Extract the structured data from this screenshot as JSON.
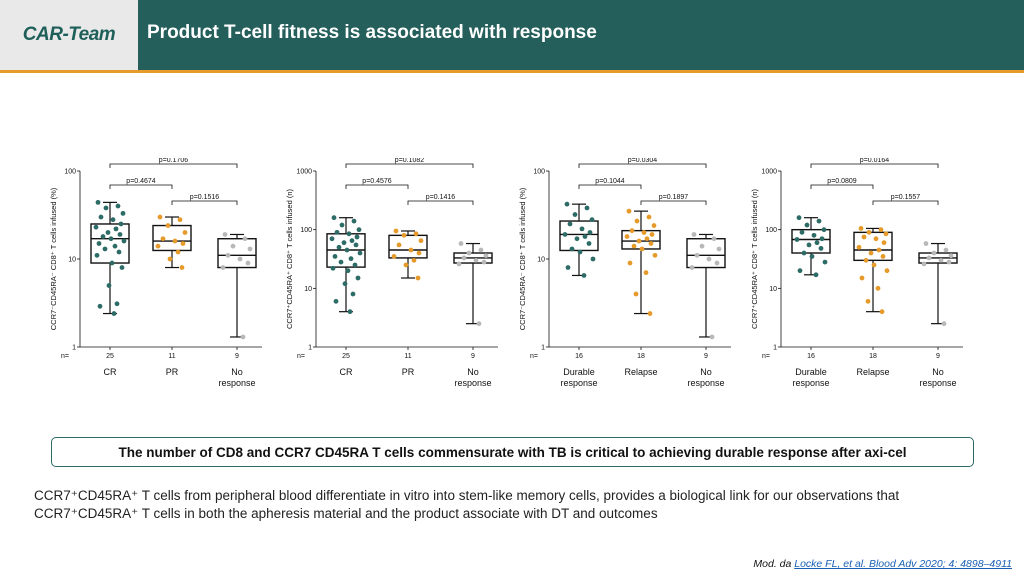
{
  "header": {
    "logo": "CAR-Team",
    "title": "Product T-cell fitness is associated with response"
  },
  "colors": {
    "teal": "#255f5c",
    "orange": "#e59a2a",
    "dot_grey": "#b8b8b8"
  },
  "chart_data": [
    {
      "type": "box",
      "ylabel": "CCR7⁻CD45RA⁻ CD8⁺ T cells infused (%)",
      "yscale": "log",
      "ylim": [
        1,
        100
      ],
      "yticks": [
        "1",
        "10",
        "100"
      ],
      "n_label": "n=",
      "groups": [
        {
          "label": [
            "CR"
          ],
          "n": "25",
          "color": "#2d6b66",
          "box": {
            "min": 2.4,
            "q1": 9,
            "median": 17,
            "q3": 25,
            "max": 44
          },
          "points": [
            44,
            40,
            38,
            33,
            30,
            28,
            25,
            23,
            22,
            20,
            19,
            18,
            17,
            16,
            15,
            14,
            13,
            12,
            11,
            9,
            8,
            5,
            3.1,
            2.9,
            2.4
          ]
        },
        {
          "label": [
            "PR"
          ],
          "n": "11",
          "color": "#e59a2a",
          "box": {
            "min": 8,
            "q1": 12.5,
            "median": 16,
            "q3": 24,
            "max": 30
          },
          "points": [
            30,
            28,
            24,
            20,
            17,
            16,
            15,
            14,
            12,
            10,
            8
          ]
        },
        {
          "label": [
            "No",
            "response"
          ],
          "n": "9",
          "color": "#b8b8b8",
          "box": {
            "min": 1.3,
            "q1": 8,
            "median": 11,
            "q3": 17,
            "max": 19
          },
          "points": [
            19,
            17,
            14,
            13,
            11,
            10,
            9,
            8,
            1.3
          ]
        }
      ],
      "pvalues": [
        {
          "from": 0,
          "to": 2,
          "text": "p=0.1706"
        },
        {
          "from": 0,
          "to": 1,
          "text": "p=0.4674"
        },
        {
          "from": 1,
          "to": 2,
          "text": "p=0.1516"
        }
      ]
    },
    {
      "type": "box",
      "ylabel": "CCR7⁺CD45RA⁺ CD8⁺ T cells infused (n)",
      "yscale": "log",
      "ylim": [
        1,
        1000
      ],
      "yticks": [
        "1",
        "10",
        "100",
        "1000"
      ],
      "n_label": "n=",
      "groups": [
        {
          "label": [
            "CR"
          ],
          "n": "25",
          "color": "#2d6b66",
          "box": {
            "min": 4,
            "q1": 23,
            "median": 45,
            "q3": 85,
            "max": 160
          },
          "points": [
            160,
            140,
            120,
            100,
            90,
            85,
            75,
            70,
            65,
            60,
            55,
            50,
            45,
            40,
            35,
            32,
            28,
            25,
            22,
            20,
            15,
            12,
            8,
            6,
            4
          ]
        },
        {
          "label": [
            "PR"
          ],
          "n": "11",
          "color": "#e59a2a",
          "box": {
            "min": 15,
            "q1": 33,
            "median": 45,
            "q3": 80,
            "max": 95
          },
          "points": [
            95,
            85,
            80,
            65,
            55,
            45,
            40,
            35,
            30,
            25,
            15
          ]
        },
        {
          "label": [
            "No",
            "response"
          ],
          "n": "9",
          "color": "#b8b8b8",
          "box": {
            "min": 2.5,
            "q1": 27,
            "median": 33,
            "q3": 40,
            "max": 58
          },
          "points": [
            58,
            45,
            40,
            36,
            33,
            30,
            28,
            26,
            2.5
          ]
        }
      ],
      "pvalues": [
        {
          "from": 0,
          "to": 2,
          "text": "p=0.1082"
        },
        {
          "from": 0,
          "to": 1,
          "text": "p=0.4576"
        },
        {
          "from": 1,
          "to": 2,
          "text": "p=0.1416"
        }
      ]
    },
    {
      "type": "box",
      "ylabel": "CCR7⁻CD45RA⁻ CD8⁺ T cells infused (%)",
      "yscale": "log",
      "ylim": [
        1,
        100
      ],
      "yticks": [
        "1",
        "10",
        "100"
      ],
      "n_label": "n=",
      "groups": [
        {
          "label": [
            "Durable",
            "response"
          ],
          "n": "16",
          "color": "#2d6b66",
          "box": {
            "min": 6.5,
            "q1": 12.5,
            "median": 19,
            "q3": 27,
            "max": 42
          },
          "points": [
            42,
            38,
            32,
            28,
            25,
            22,
            20,
            19,
            18,
            17,
            15,
            13,
            12,
            10,
            8,
            6.5
          ]
        },
        {
          "label": [
            "Relapse"
          ],
          "n": "18",
          "color": "#e59a2a",
          "box": {
            "min": 2.4,
            "q1": 13,
            "median": 16,
            "q3": 21,
            "max": 35
          },
          "points": [
            35,
            30,
            27,
            24,
            21,
            20,
            19,
            18,
            17,
            16,
            15,
            14,
            13,
            11,
            9,
            7,
            4,
            2.4
          ]
        },
        {
          "label": [
            "No",
            "response"
          ],
          "n": "9",
          "color": "#b8b8b8",
          "box": {
            "min": 1.3,
            "q1": 8,
            "median": 11,
            "q3": 17,
            "max": 19
          },
          "points": [
            19,
            17,
            14,
            13,
            11,
            10,
            9,
            8,
            1.3
          ]
        }
      ],
      "pvalues": [
        {
          "from": 0,
          "to": 2,
          "text": "p=0.0304"
        },
        {
          "from": 0,
          "to": 1,
          "text": "p=0.1044"
        },
        {
          "from": 1,
          "to": 2,
          "text": "p=0.1897"
        }
      ]
    },
    {
      "type": "box",
      "ylabel": "CCR7⁺CD45RA⁺ CD8⁺ T cells infused (n)",
      "yscale": "log",
      "ylim": [
        1,
        1000
      ],
      "yticks": [
        "1",
        "10",
        "100",
        "1000"
      ],
      "n_label": "n=",
      "groups": [
        {
          "label": [
            "Durable",
            "response"
          ],
          "n": "16",
          "color": "#2d6b66",
          "box": {
            "min": 17,
            "q1": 40,
            "median": 68,
            "q3": 100,
            "max": 160
          },
          "points": [
            160,
            140,
            120,
            100,
            90,
            80,
            70,
            68,
            60,
            55,
            48,
            40,
            35,
            28,
            20,
            17
          ]
        },
        {
          "label": [
            "Relapse"
          ],
          "n": "18",
          "color": "#e59a2a",
          "box": {
            "min": 4,
            "q1": 30,
            "median": 45,
            "q3": 90,
            "max": 105
          },
          "points": [
            105,
            100,
            90,
            85,
            75,
            70,
            60,
            50,
            45,
            40,
            35,
            30,
            25,
            20,
            15,
            10,
            6,
            4
          ]
        },
        {
          "label": [
            "No",
            "response"
          ],
          "n": "9",
          "color": "#b8b8b8",
          "box": {
            "min": 2.5,
            "q1": 27,
            "median": 33,
            "q3": 40,
            "max": 58
          },
          "points": [
            58,
            45,
            40,
            36,
            33,
            30,
            28,
            26,
            2.5
          ]
        }
      ],
      "pvalues": [
        {
          "from": 0,
          "to": 2,
          "text": "p=0.0164"
        },
        {
          "from": 0,
          "to": 1,
          "text": "p=0.0809"
        },
        {
          "from": 1,
          "to": 2,
          "text": "p=0.1557"
        }
      ]
    }
  ],
  "banner": "The number of CD8 and CCR7 CD45RA T cells commensurate with TB is critical to achieving durable response after axi-cel",
  "body_text": "CCR7⁺CD45RA⁺ T cells from peripheral blood differentiate in vitro into stem-like memory cells, provides a biological link for our observations that CCR7⁺CD45RA⁺ T cells in both the apheresis material and the product associate with DT and outcomes",
  "citation": {
    "prefix": "Mod. da ",
    "link": "Locke FL, et al. Blood Adv 2020; 4: 4898–4911"
  }
}
